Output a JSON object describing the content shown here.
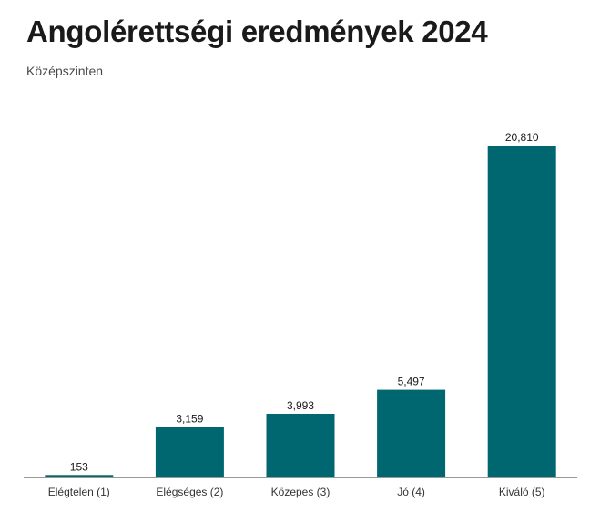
{
  "chart_data": {
    "type": "bar",
    "title": "Angolérettségi eredmények 2024",
    "subtitle": "Középszinten",
    "categories": [
      "Elégtelen (1)",
      "Elégséges (2)",
      "Közepes (3)",
      "Jó (4)",
      "Kiváló (5)"
    ],
    "values": [
      153,
      3159,
      3993,
      5497,
      20810
    ],
    "value_labels": [
      "153",
      "3,159",
      "3,993",
      "5,497",
      "20,810"
    ],
    "xlabel": "",
    "ylabel": "",
    "ylim": [
      0,
      20810
    ],
    "grid": false,
    "legend": "none",
    "bar_color": "#00666f",
    "axis_color": "#999999"
  }
}
